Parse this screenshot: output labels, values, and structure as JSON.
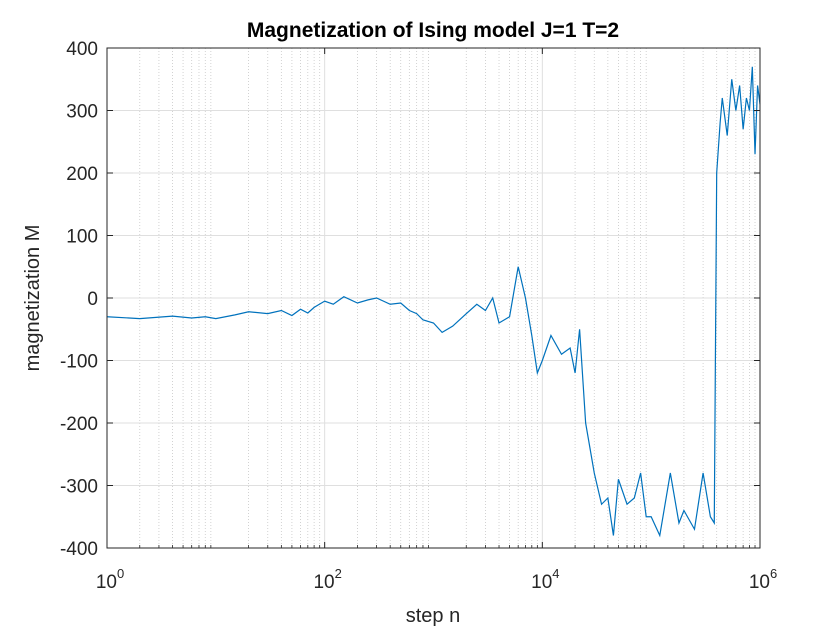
{
  "chart_data": {
    "type": "line",
    "title": "Magnetization of Ising model J=1 T=2",
    "xlabel": "step n",
    "ylabel": "magnetization M",
    "xscale": "log",
    "xlim": [
      1,
      1000000
    ],
    "ylim": [
      -400,
      400
    ],
    "grid": "on",
    "xticks": [
      {
        "value": 1,
        "base": "10",
        "exp": "0"
      },
      {
        "value": 100,
        "base": "10",
        "exp": "2"
      },
      {
        "value": 10000,
        "base": "10",
        "exp": "4"
      },
      {
        "value": 1000000,
        "base": "10",
        "exp": "6"
      }
    ],
    "yticks": [
      -400,
      -300,
      -200,
      -100,
      0,
      100,
      200,
      300,
      400
    ],
    "line_color": "#0072BD",
    "series": [
      {
        "x": [
          1,
          2,
          4,
          6,
          8,
          10,
          15,
          20,
          30,
          40,
          50,
          60,
          70,
          80,
          100,
          120,
          150,
          200,
          250,
          300,
          400,
          500,
          600,
          700,
          800,
          1000,
          1200,
          1500,
          2000,
          2500,
          3000,
          3500,
          4000,
          5000,
          6000,
          7000,
          8000,
          9000,
          10000,
          12000,
          15000,
          18000,
          20000,
          22000,
          25000,
          30000,
          35000,
          40000,
          45000,
          50000,
          60000,
          70000,
          80000,
          90000,
          100000,
          120000,
          150000,
          180000,
          200000,
          250000,
          300000,
          350000,
          380000,
          400000,
          430000,
          450000,
          500000,
          550000,
          600000,
          650000,
          700000,
          750000,
          800000,
          850000,
          900000,
          950000,
          1000000
        ],
        "y": [
          -30,
          -33,
          -29,
          -32,
          -30,
          -33,
          -27,
          -22,
          -25,
          -20,
          -28,
          -18,
          -24,
          -15,
          -5,
          -10,
          2,
          -8,
          -3,
          0,
          -10,
          -8,
          -20,
          -25,
          -35,
          -40,
          -55,
          -45,
          -25,
          -10,
          -20,
          0,
          -40,
          -30,
          50,
          0,
          -60,
          -120,
          -100,
          -60,
          -90,
          -80,
          -120,
          -50,
          -200,
          -280,
          -330,
          -320,
          -380,
          -290,
          -330,
          -320,
          -280,
          -350,
          -350,
          -380,
          -280,
          -360,
          -340,
          -370,
          -280,
          -350,
          -360,
          200,
          280,
          320,
          260,
          350,
          300,
          340,
          270,
          320,
          300,
          370,
          230,
          340,
          310
        ]
      }
    ]
  }
}
